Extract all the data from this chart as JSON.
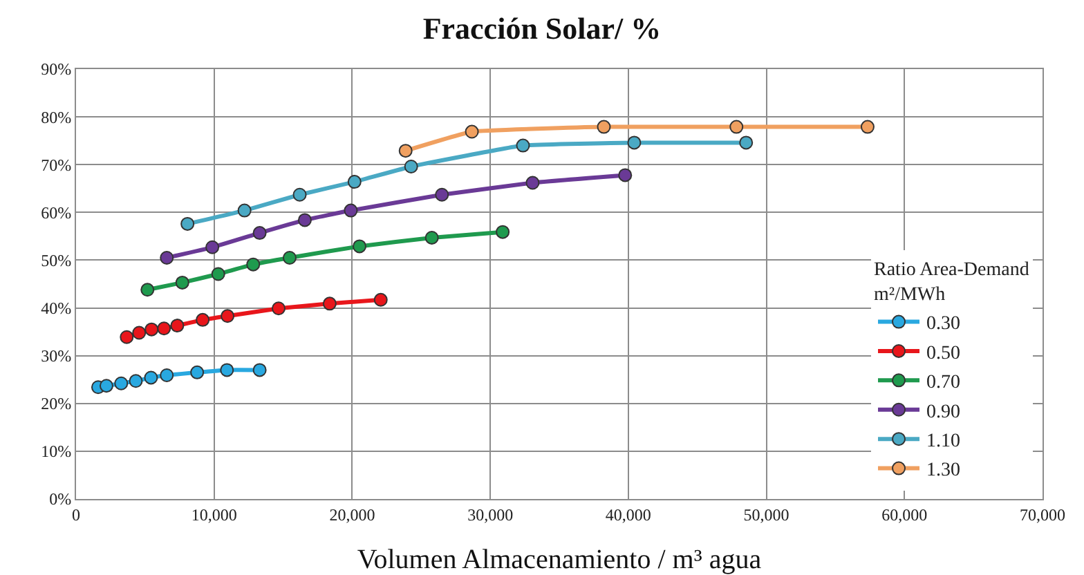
{
  "chart_data": {
    "type": "line",
    "title": "Fracción Solar/ %",
    "xlabel": "Volumen Almacenamiento / m³ agua",
    "legend_title": "Ratio Area-Demand\nm²/MWh",
    "xlim": [
      0,
      70000
    ],
    "xticks": [
      0,
      {
        "value": 10000,
        "label": "10,000"
      },
      {
        "value": 20000,
        "label": "20,000"
      },
      {
        "value": 30000,
        "label": "30,000"
      },
      {
        "value": 40000,
        "label": "40,000"
      },
      {
        "value": 50000,
        "label": "50,000"
      },
      {
        "value": 60000,
        "label": "60,000"
      },
      {
        "value": 70000,
        "label": "70,000"
      }
    ],
    "ylim": [
      0,
      90
    ],
    "yticks": [
      {
        "value": 0,
        "label": "0%"
      },
      {
        "value": 10,
        "label": "10%"
      },
      {
        "value": 20,
        "label": "20%"
      },
      {
        "value": 30,
        "label": "30%"
      },
      {
        "value": 40,
        "label": "40%"
      },
      {
        "value": 50,
        "label": "50%"
      },
      {
        "value": 60,
        "label": "60%"
      },
      {
        "value": 70,
        "label": "70%"
      },
      {
        "value": 80,
        "label": "80%"
      },
      {
        "value": 90,
        "label": "90%"
      }
    ],
    "grid": true,
    "legend": "bottom right",
    "marker": "circle",
    "line_style": "solid",
    "series": [
      {
        "name": "0.30",
        "color": "#29a8e0",
        "x": [
          1600,
          2200,
          3270,
          4330,
          5430,
          6570,
          8770,
          10930,
          13300
        ],
        "values": [
          23.4,
          23.7,
          24.2,
          24.7,
          25.4,
          25.9,
          26.5,
          27.0,
          27.0
        ]
      },
      {
        "name": "0.50",
        "color": "#e8161b",
        "x": [
          3670,
          4570,
          5470,
          6370,
          7330,
          9170,
          10970,
          14670,
          18370,
          22070
        ],
        "values": [
          33.9,
          34.8,
          35.5,
          35.7,
          36.3,
          37.5,
          38.3,
          39.9,
          40.9,
          41.7
        ]
      },
      {
        "name": "0.70",
        "color": "#1f9a4e",
        "x": [
          5170,
          7700,
          10300,
          12830,
          15470,
          20530,
          25770,
          30900
        ],
        "values": [
          43.8,
          45.3,
          47.1,
          49.1,
          50.5,
          52.9,
          54.7,
          55.9
        ]
      },
      {
        "name": "0.90",
        "color": "#6a3a96",
        "x": [
          6570,
          9870,
          13300,
          16570,
          19900,
          26500,
          33070,
          39770
        ],
        "values": [
          50.5,
          52.7,
          55.7,
          58.4,
          60.4,
          63.7,
          66.2,
          67.8
        ]
      },
      {
        "name": "1.10",
        "color": "#4aa9c4",
        "x": [
          8070,
          12200,
          16200,
          20170,
          24270,
          32370,
          40430,
          48530
        ],
        "values": [
          57.6,
          60.4,
          63.7,
          66.4,
          69.6,
          74.0,
          74.6,
          74.6
        ]
      },
      {
        "name": "1.30",
        "color": "#f0a060",
        "x": [
          23870,
          28670,
          38230,
          47830,
          57330
        ],
        "values": [
          72.9,
          76.9,
          77.9,
          77.9,
          77.9
        ]
      }
    ]
  }
}
